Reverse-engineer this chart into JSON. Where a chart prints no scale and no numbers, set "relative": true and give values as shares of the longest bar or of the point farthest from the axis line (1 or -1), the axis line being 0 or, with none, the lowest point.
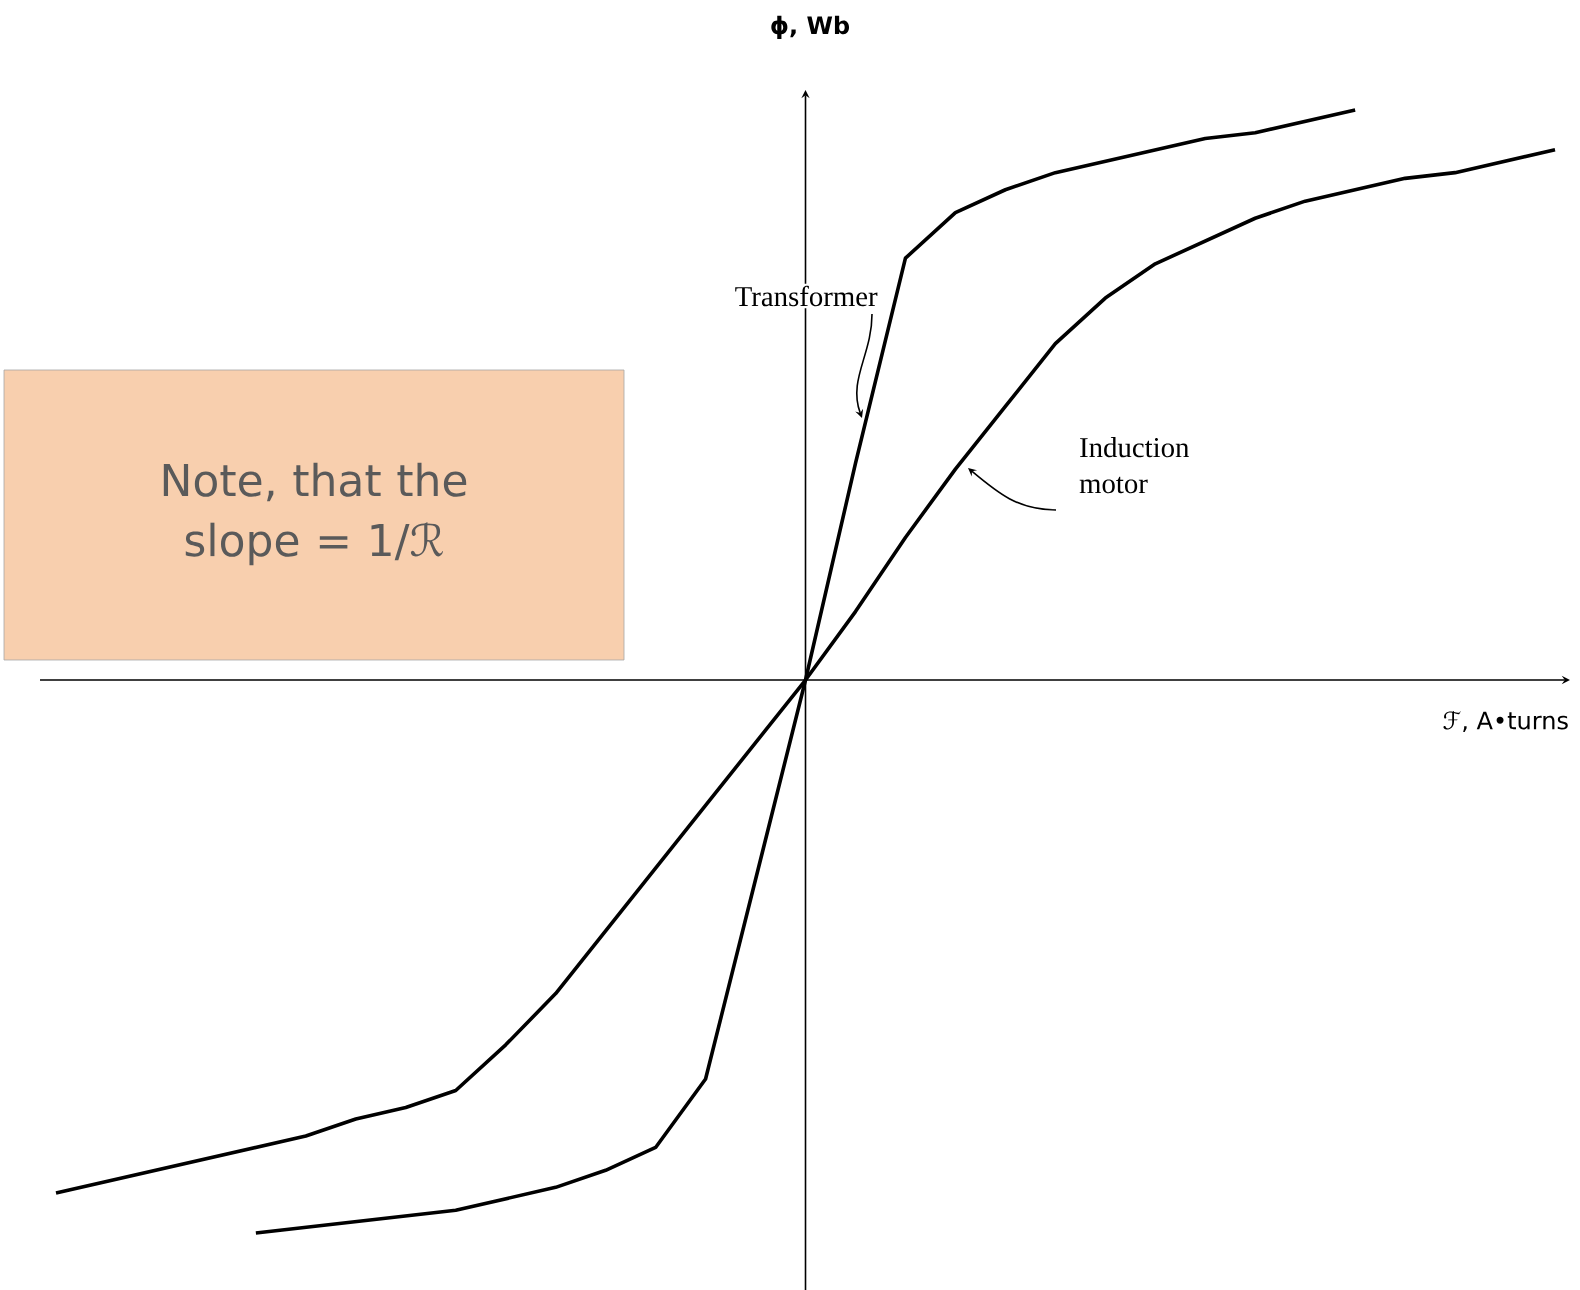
{
  "chart_data": {
    "type": "line",
    "relative": true,
    "xlabel": "ℱ, A•turns",
    "ylabel": "ϕ, Wb",
    "categories": [
      null,
      null,
      null,
      null,
      null,
      null,
      null,
      null,
      null,
      null,
      null,
      null,
      null,
      null,
      null,
      null,
      null,
      null,
      null,
      null,
      null,
      null,
      null,
      null,
      null,
      null,
      null,
      null,
      null,
      null,
      null
    ],
    "series": [
      {
        "name": "Transformer",
        "color": "#000000",
        "values": [
          null,
          null,
          null,
          null,
          -0.97,
          -0.96,
          -0.95,
          -0.94,
          -0.93,
          -0.91,
          -0.89,
          -0.86,
          -0.82,
          -0.7,
          -0.35,
          0,
          0.38,
          0.74,
          0.82,
          0.86,
          0.89,
          0.91,
          0.93,
          0.95,
          0.96,
          0.98,
          1.0,
          null,
          null,
          null,
          null
        ]
      },
      {
        "name": "Induction motor",
        "color": "#000000",
        "values": [
          -0.9,
          -0.88,
          -0.86,
          -0.84,
          -0.82,
          -0.8,
          -0.77,
          -0.75,
          -0.72,
          -0.64,
          -0.55,
          -0.44,
          -0.33,
          -0.22,
          -0.11,
          0,
          0.12,
          0.25,
          0.37,
          0.48,
          0.59,
          0.67,
          0.73,
          0.77,
          0.81,
          0.84,
          0.86,
          0.88,
          0.89,
          0.91,
          0.93
        ]
      }
    ],
    "annotations": [
      "Note, that the slope = 1/ℛ"
    ],
    "legend": false,
    "marker": "none",
    "line_style": "solid"
  }
}
